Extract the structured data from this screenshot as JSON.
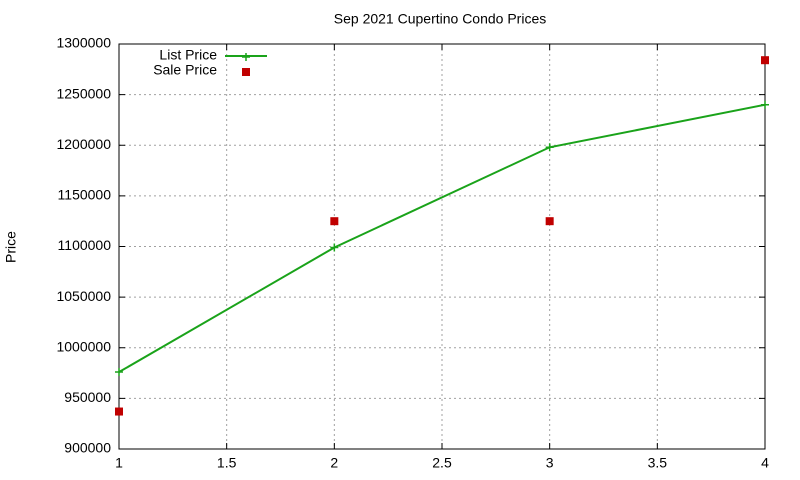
{
  "chart_data": {
    "type": "line",
    "title": "Sep 2021 Cupertino Condo Prices",
    "y_label": "Price",
    "x": [
      1,
      2,
      3,
      4
    ],
    "series": [
      {
        "name": "List Price",
        "color": "#1aa31a",
        "mode": "lines+markers",
        "marker": "plus",
        "values": [
          976000,
          1099000,
          1198000,
          1240000
        ]
      },
      {
        "name": "Sale Price",
        "color": "#c00000",
        "mode": "markers",
        "marker": "square",
        "values": [
          937000,
          1125000,
          1125000,
          1284000
        ]
      }
    ],
    "xlim": [
      1,
      4
    ],
    "xticks": [
      1,
      1.5,
      2,
      2.5,
      3,
      3.5,
      4
    ],
    "ylim": [
      900000,
      1300000
    ],
    "yticks": [
      900000,
      950000,
      1000000,
      1050000,
      1100000,
      1150000,
      1200000,
      1250000,
      1300000
    ],
    "grid": true,
    "legend": "top-left"
  }
}
